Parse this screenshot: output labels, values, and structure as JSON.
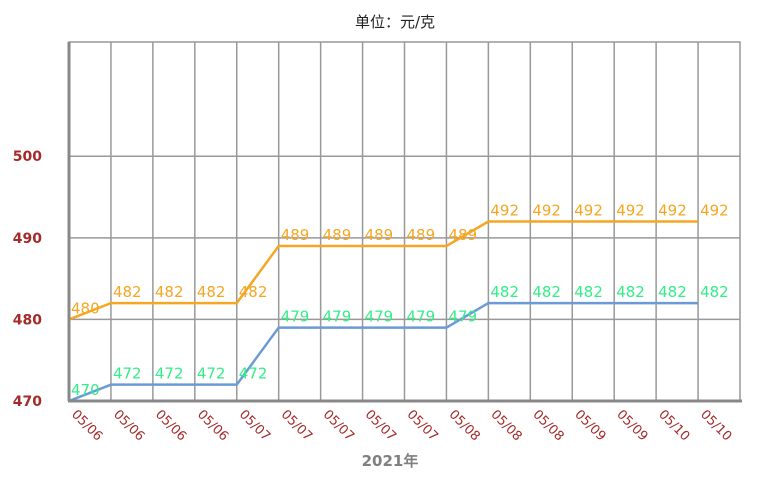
{
  "chart_data": {
    "type": "line",
    "title": "单位：元/克",
    "xlabel": "2021年",
    "ylabel": "",
    "ylim": [
      470,
      514
    ],
    "yticks": [
      470,
      480,
      490,
      500
    ],
    "grid": true,
    "categories": [
      "05/06",
      "05/06",
      "05/06",
      "05/06",
      "05/07",
      "05/07",
      "05/07",
      "05/07",
      "05/07",
      "05/08",
      "05/08",
      "05/08",
      "05/09",
      "05/09",
      "05/10",
      "05/10"
    ],
    "series": [
      {
        "color": "#f5a623",
        "values": [
          480,
          482,
          482,
          482,
          482,
          489,
          489,
          489,
          489,
          489,
          492,
          492,
          492,
          492,
          492,
          492
        ]
      },
      {
        "color": "#6a9bd8",
        "label_color": "#33ee88",
        "values": [
          470,
          472,
          472,
          472,
          472,
          479,
          479,
          479,
          479,
          479,
          482,
          482,
          482,
          482,
          482,
          482
        ]
      }
    ]
  }
}
